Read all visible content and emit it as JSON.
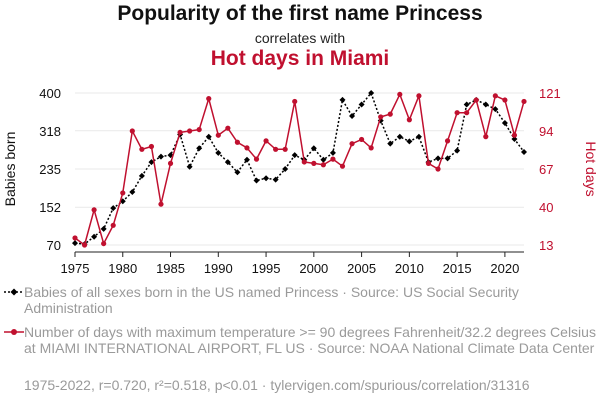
{
  "header": {
    "title": "Popularity of the first name Princess",
    "subtitle": "correlates with",
    "title2": "Hot days in Miami"
  },
  "colors": {
    "series1": "#000000",
    "series2": "#c0102f",
    "muted": "#9a9a9a"
  },
  "legend": [
    {
      "marker": "black-diamond-dotted-line",
      "text": "Babies of all sexes born in the US named Princess · Source: US Social Security Administration"
    },
    {
      "marker": "red-circle-solid-line",
      "text": "Number of days with maximum temperature >= 90 degrees Fahrenheit/32.2 degrees Celsius at MIAMI INTERNATIONAL AIRPORT, FL US · Source: NOAA National Climate Data Center"
    }
  ],
  "footer": "1975-2022, r=0.720, r²=0.518, p<0.01 · tylervigen.com/spurious/correlation/31316",
  "chart_data": {
    "type": "line",
    "x": [
      1975,
      1976,
      1977,
      1978,
      1979,
      1980,
      1981,
      1982,
      1983,
      1984,
      1985,
      1986,
      1987,
      1988,
      1989,
      1990,
      1991,
      1992,
      1993,
      1994,
      1995,
      1996,
      1997,
      1998,
      1999,
      2000,
      2001,
      2002,
      2003,
      2004,
      2005,
      2006,
      2007,
      2008,
      2009,
      2010,
      2011,
      2012,
      2013,
      2014,
      2015,
      2016,
      2017,
      2018,
      2019,
      2020,
      2021,
      2022
    ],
    "xticks": [
      1975,
      1980,
      1985,
      1990,
      1995,
      2000,
      2005,
      2010,
      2015,
      2020
    ],
    "left_axis": {
      "label": "Babies born",
      "ylim": [
        70,
        400
      ],
      "ticks": [
        70,
        152,
        235,
        318,
        400
      ]
    },
    "right_axis": {
      "label": "Hot days",
      "ylim": [
        13,
        121
      ],
      "ticks": [
        13,
        40,
        67,
        94,
        121
      ]
    },
    "series": [
      {
        "axis": "left",
        "style": "dotted-diamond",
        "values": [
          74,
          72,
          88,
          105,
          150,
          165,
          185,
          220,
          250,
          262,
          265,
          310,
          240,
          280,
          305,
          270,
          250,
          228,
          255,
          210,
          215,
          212,
          235,
          265,
          255,
          280,
          255,
          270,
          385,
          350,
          375,
          400,
          340,
          290,
          305,
          295,
          305,
          250,
          258,
          258,
          275,
          375,
          385,
          375,
          365,
          335,
          300,
          272
        ]
      },
      {
        "axis": "right",
        "style": "solid-circle",
        "values": [
          18,
          13,
          38,
          14,
          27,
          50,
          94,
          81,
          83,
          42,
          71,
          93,
          94,
          95,
          117,
          91,
          96,
          86,
          82,
          74,
          87,
          81,
          81,
          115,
          72,
          71,
          70,
          74,
          69,
          85,
          88,
          82,
          104,
          106,
          120,
          102,
          119,
          71,
          67,
          87,
          107,
          107,
          116,
          90,
          119,
          116,
          91,
          115
        ]
      }
    ]
  }
}
